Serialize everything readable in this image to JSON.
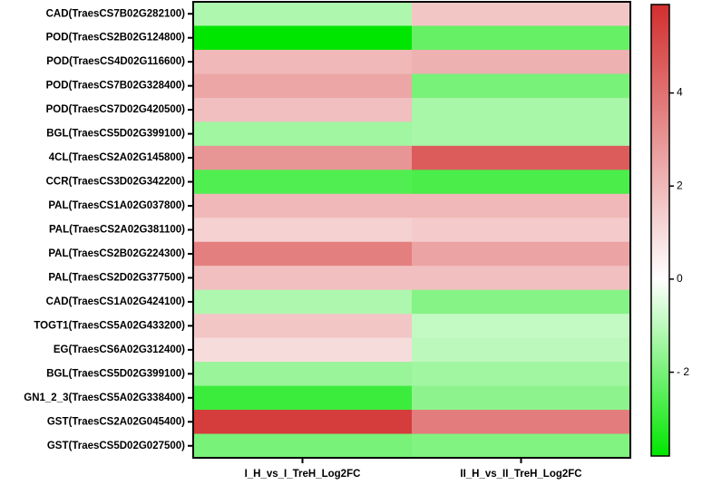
{
  "chart_data": {
    "type": "heatmap",
    "rows": [
      "CAD(TraesCS7B02G282100)",
      "POD(TraesCS2B02G124800)",
      "POD(TraesCS4D02G116600)",
      "POD(TraesCS7B02G328400)",
      "POD(TraesCS7D02G420500)",
      "BGL(TraesCS5D02G399100)",
      "4CL(TraesCS2A02G145800)",
      "CCR(TraesCS3D02G342200)",
      "PAL(TraesCS1A02G037800)",
      "PAL(TraesCS2A02G381100)",
      "PAL(TraesCS2B02G224300)",
      "PAL(TraesCS2D02G377500)",
      "CAD(TraesCS1A02G424100)",
      "TOGT1(TraesCS5A02G433200)",
      "EG(TraesCS6A02G312400)",
      "BGL(TraesCS5D02G399100)",
      "GN1_2_3(TraesCS5A02G338400)",
      "GST(TraesCS2A02G045400)",
      "GST(TraesCS5D02G027500)"
    ],
    "columns": [
      "I_H_vs_I_TreH_Log2FC",
      "II_H_vs_II_TreH_Log2FC"
    ],
    "values": [
      [
        -1.2,
        1.6
      ],
      [
        -3.8,
        -2.3
      ],
      [
        2.0,
        2.2
      ],
      [
        2.5,
        -2.0
      ],
      [
        1.8,
        -1.3
      ],
      [
        -1.4,
        -1.3
      ],
      [
        3.0,
        4.6
      ],
      [
        -2.6,
        -2.7
      ],
      [
        2.0,
        2.0
      ],
      [
        1.3,
        1.5
      ],
      [
        3.6,
        2.6
      ],
      [
        1.8,
        1.8
      ],
      [
        -1.2,
        -1.8
      ],
      [
        1.6,
        -0.9
      ],
      [
        1.0,
        -1.0
      ],
      [
        -1.5,
        -1.4
      ],
      [
        -2.9,
        -1.7
      ],
      [
        5.5,
        3.7
      ],
      [
        -2.0,
        -1.9
      ]
    ],
    "zlim": [
      -3.8,
      5.9
    ],
    "zticks": [
      {
        "value": -2,
        "label": "- 2"
      },
      0,
      2,
      4
    ],
    "colormap": {
      "low": "#00e600",
      "mid": "#ffffff",
      "high": "#d22e2e"
    }
  }
}
